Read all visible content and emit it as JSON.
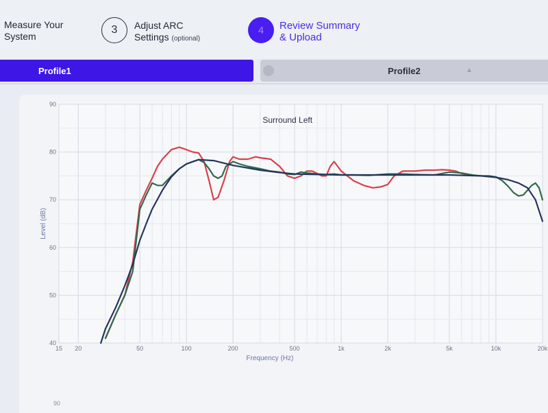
{
  "stepper": {
    "step1": {
      "line1": "Measure Your",
      "line2": "System"
    },
    "step3": {
      "number": "3",
      "line1": "Adjust ARC",
      "line2": "Settings",
      "optional": "(optional)"
    },
    "step4": {
      "number": "4",
      "line1": "Review Summary",
      "line2": "& Upload"
    }
  },
  "tabs": {
    "profile1": "Profile1",
    "profile2": "Profile2",
    "profile2_icon": "chevron-up-icon"
  },
  "colors": {
    "accent": "#3e17e6",
    "red_curve": "#d9404a",
    "green_curve": "#2f6a4a",
    "navy_curve": "#25355a"
  },
  "chart_data": {
    "type": "line",
    "title": "Surround Left",
    "xlabel": "Frequency (Hz)",
    "ylabel": "Level (dB)",
    "x_scale": "log",
    "xlim": [
      15,
      20000
    ],
    "ylim": [
      40,
      90
    ],
    "grid": true,
    "x_ticks": [
      {
        "v": 15,
        "l": "15"
      },
      {
        "v": 20,
        "l": "20"
      },
      {
        "v": 50,
        "l": "50"
      },
      {
        "v": 100,
        "l": "100"
      },
      {
        "v": 200,
        "l": "200"
      },
      {
        "v": 500,
        "l": "500"
      },
      {
        "v": 1000,
        "l": "1k"
      },
      {
        "v": 2000,
        "l": "2k"
      },
      {
        "v": 5000,
        "l": "5k"
      },
      {
        "v": 10000,
        "l": "10k"
      },
      {
        "v": 20000,
        "l": "20k"
      }
    ],
    "y_ticks": [
      {
        "v": 40,
        "l": "40"
      },
      {
        "v": 50,
        "l": "50"
      },
      {
        "v": 60,
        "l": "60"
      },
      {
        "v": 70,
        "l": "70"
      },
      {
        "v": 80,
        "l": "80"
      },
      {
        "v": 90,
        "l": "90"
      }
    ],
    "series": [
      {
        "color": "#d9404a",
        "points": [
          [
            30,
            41
          ],
          [
            35,
            46
          ],
          [
            40,
            50
          ],
          [
            45,
            57
          ],
          [
            50,
            69
          ],
          [
            55,
            72
          ],
          [
            60,
            74.5
          ],
          [
            65,
            77
          ],
          [
            70,
            78.5
          ],
          [
            80,
            80.5
          ],
          [
            90,
            81
          ],
          [
            100,
            80.5
          ],
          [
            110,
            80
          ],
          [
            120,
            79.8
          ],
          [
            130,
            78
          ],
          [
            140,
            74
          ],
          [
            150,
            70
          ],
          [
            160,
            70.5
          ],
          [
            175,
            74
          ],
          [
            190,
            78
          ],
          [
            200,
            79
          ],
          [
            220,
            78.5
          ],
          [
            250,
            78.5
          ],
          [
            280,
            79
          ],
          [
            300,
            78.8
          ],
          [
            350,
            78.5
          ],
          [
            400,
            77
          ],
          [
            450,
            75
          ],
          [
            500,
            74.5
          ],
          [
            550,
            75
          ],
          [
            600,
            76
          ],
          [
            650,
            76
          ],
          [
            700,
            75.5
          ],
          [
            750,
            75
          ],
          [
            800,
            75
          ],
          [
            850,
            77
          ],
          [
            900,
            78
          ],
          [
            950,
            77
          ],
          [
            1000,
            76
          ],
          [
            1200,
            74
          ],
          [
            1400,
            73
          ],
          [
            1600,
            72.5
          ],
          [
            1800,
            72.7
          ],
          [
            2000,
            73.2
          ],
          [
            2200,
            75
          ],
          [
            2500,
            76
          ],
          [
            3000,
            76
          ],
          [
            3500,
            76.2
          ],
          [
            4000,
            76.2
          ],
          [
            4500,
            76.3
          ],
          [
            5000,
            76.2
          ],
          [
            5500,
            76
          ],
          [
            6000,
            75.5
          ],
          [
            7000,
            75.2
          ]
        ]
      },
      {
        "color": "#2f6a4a",
        "points": [
          [
            30,
            41
          ],
          [
            35,
            46
          ],
          [
            40,
            50
          ],
          [
            45,
            55
          ],
          [
            50,
            68
          ],
          [
            55,
            71
          ],
          [
            60,
            73.5
          ],
          [
            65,
            73
          ],
          [
            70,
            73
          ],
          [
            80,
            75
          ],
          [
            90,
            76.5
          ],
          [
            100,
            77.5
          ],
          [
            110,
            78
          ],
          [
            120,
            78.4
          ],
          [
            130,
            77.8
          ],
          [
            140,
            76.5
          ],
          [
            150,
            75
          ],
          [
            160,
            74.5
          ],
          [
            170,
            75
          ],
          [
            180,
            77
          ],
          [
            200,
            78
          ],
          [
            220,
            77.5
          ],
          [
            250,
            77
          ],
          [
            300,
            76.5
          ],
          [
            350,
            76
          ],
          [
            400,
            75.8
          ],
          [
            450,
            75.4
          ],
          [
            500,
            75.3
          ],
          [
            550,
            75.8
          ],
          [
            600,
            75.6
          ],
          [
            700,
            75.4
          ],
          [
            800,
            75.3
          ],
          [
            900,
            75.4
          ],
          [
            1000,
            75.2
          ],
          [
            1200,
            75.2
          ],
          [
            1500,
            75.1
          ],
          [
            2000,
            75.4
          ],
          [
            2500,
            75.4
          ],
          [
            3000,
            75.3
          ],
          [
            4000,
            75.2
          ],
          [
            5000,
            75.8
          ],
          [
            6000,
            75.6
          ],
          [
            7000,
            75.2
          ],
          [
            8000,
            75
          ],
          [
            9000,
            75
          ],
          [
            10000,
            74.8
          ],
          [
            11000,
            74
          ],
          [
            12000,
            72.8
          ],
          [
            13000,
            71.5
          ],
          [
            14000,
            70.8
          ],
          [
            15000,
            71
          ],
          [
            16000,
            72
          ],
          [
            17000,
            73
          ],
          [
            18000,
            73.5
          ],
          [
            19000,
            72.5
          ],
          [
            20000,
            70
          ]
        ]
      },
      {
        "color": "#25355a",
        "points": [
          [
            28,
            40
          ],
          [
            30,
            43
          ],
          [
            35,
            47.5
          ],
          [
            40,
            52
          ],
          [
            45,
            56.5
          ],
          [
            50,
            61.5
          ],
          [
            55,
            65
          ],
          [
            60,
            68
          ],
          [
            70,
            72
          ],
          [
            80,
            74.8
          ],
          [
            90,
            76.5
          ],
          [
            100,
            77.5
          ],
          [
            120,
            78.4
          ],
          [
            150,
            78.2
          ],
          [
            200,
            77.2
          ],
          [
            300,
            76.2
          ],
          [
            400,
            75.7
          ],
          [
            500,
            75.4
          ],
          [
            700,
            75.3
          ],
          [
            1000,
            75.2
          ],
          [
            2000,
            75.2
          ],
          [
            5000,
            75.2
          ],
          [
            8000,
            75
          ],
          [
            10000,
            74.7
          ],
          [
            12000,
            74.2
          ],
          [
            14000,
            73.5
          ],
          [
            16000,
            72.5
          ],
          [
            18000,
            70
          ],
          [
            20000,
            65.5
          ]
        ]
      }
    ]
  },
  "bottom": {
    "partial_tick": "90"
  }
}
